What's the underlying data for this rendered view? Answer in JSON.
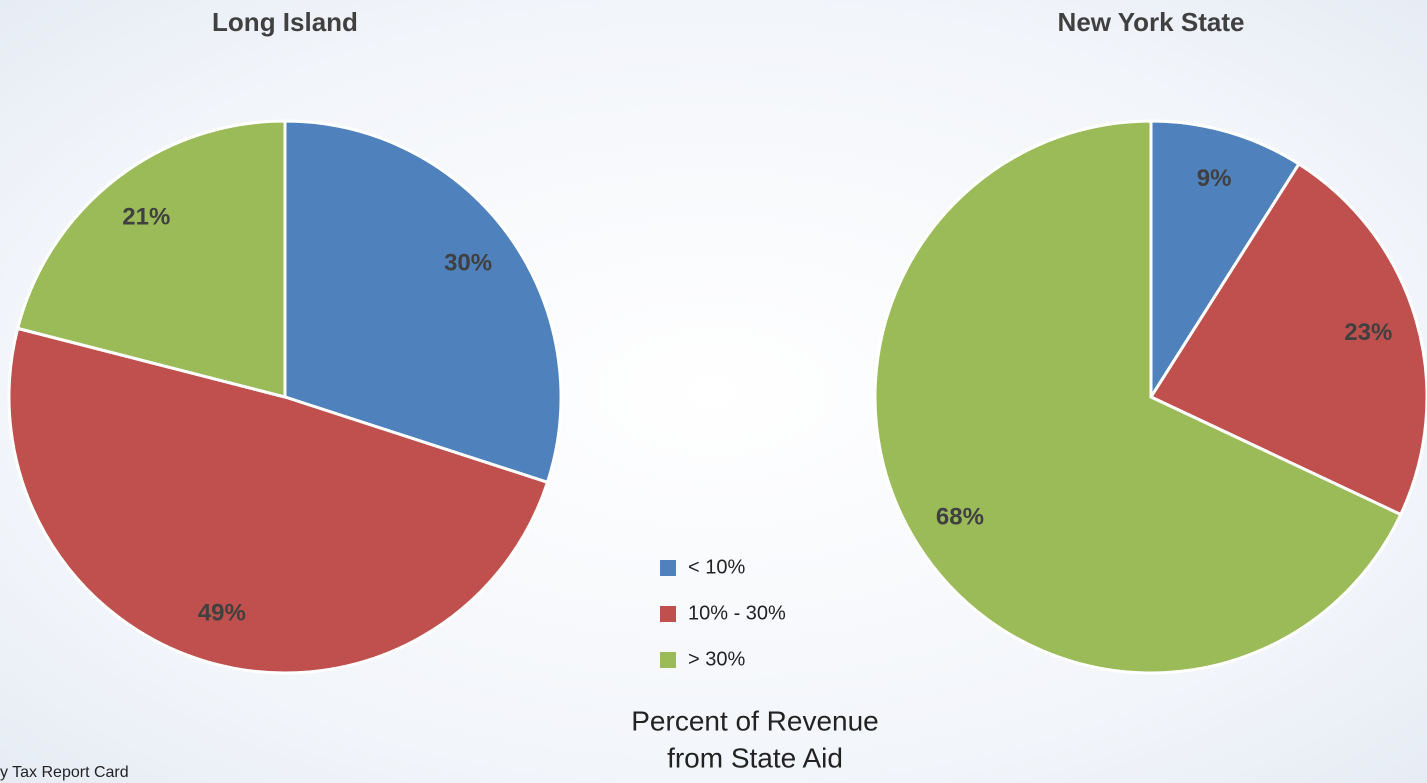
{
  "chart_data": [
    {
      "type": "pie",
      "title": "Long Island",
      "values": [
        30,
        49,
        21
      ],
      "value_labels": [
        "30%",
        "49%",
        "21%"
      ]
    },
    {
      "type": "pie",
      "title": "New York State",
      "values": [
        9,
        23,
        68
      ],
      "value_labels": [
        "9%",
        "23%",
        "68%"
      ]
    }
  ],
  "legend": [
    "< 10%",
    "10% - 30%",
    "> 30%"
  ],
  "colors": [
    "#4f81bd",
    "#c0504d",
    "#9bbb59"
  ],
  "caption": [
    "Percent of Revenue",
    "from State Aid"
  ],
  "source": "y Tax Report Card"
}
